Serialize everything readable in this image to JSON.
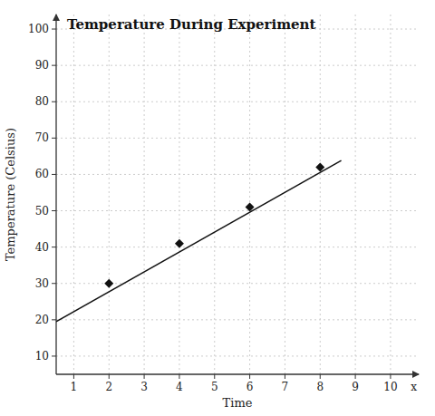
{
  "chart_data": {
    "type": "scatter",
    "title": "Temperature During Experiment",
    "x_label": "Time",
    "y_label": "Temperature (Celsius)",
    "annotations": [
      "x"
    ],
    "series": [
      {
        "type": "scatter",
        "marker": "diamond",
        "color": "#111111",
        "x": [
          2,
          4,
          6,
          8
        ],
        "values": [
          30,
          41,
          51,
          62
        ]
      },
      {
        "type": "line",
        "line_style": "solid",
        "color": "#111111",
        "x": [
          0.5,
          8.6
        ],
        "values": [
          19.5,
          63.8
        ]
      }
    ],
    "xlim": [
      0.5,
      10.8
    ],
    "ylim": [
      5,
      104
    ],
    "xticks": [
      1,
      2,
      3,
      4,
      5,
      6,
      7,
      8,
      9,
      10
    ],
    "yticks": [
      10,
      20,
      30,
      40,
      50,
      60,
      70,
      80,
      90,
      100
    ],
    "grid": true
  }
}
